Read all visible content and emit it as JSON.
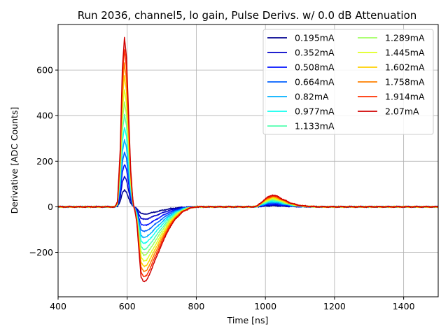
{
  "chart_data": {
    "type": "line",
    "title": "Run 2036, channel5, lo gain, Pulse Derivs. w/ 0.0 dB Attenuation",
    "xlabel": "Time [ns]",
    "ylabel": "Derivative [ADC Counts]",
    "xlim": [
      400,
      1500
    ],
    "ylim": [
      -395,
      800
    ],
    "xticks": [
      400,
      600,
      800,
      1000,
      1200,
      1400
    ],
    "xtick_labels": [
      "400",
      "600",
      "800",
      "1000",
      "1200",
      "1400"
    ],
    "yticks": [
      -200,
      0,
      200,
      400,
      600
    ],
    "ytick_labels": [
      "−200",
      "0",
      "200",
      "400",
      "600"
    ],
    "grid": true,
    "legend_placement": "top-right",
    "legend_columns": 2,
    "pulse_shape": {
      "x": [
        400,
        565,
        572,
        580,
        586,
        592,
        598,
        604,
        610,
        616,
        622,
        628,
        634,
        640,
        648,
        656,
        666,
        680,
        700,
        720,
        740,
        760,
        780,
        800,
        960,
        975,
        990,
        1005,
        1020,
        1035,
        1050,
        1070,
        1090,
        1110,
        1130,
        1160,
        1200,
        1500
      ],
      "shape": [
        0,
        0,
        0.03,
        0.35,
        0.82,
        1.0,
        0.88,
        0.55,
        0.22,
        0.05,
        -0.05,
        -0.22,
        -0.58,
        -0.93,
        -1.0,
        -0.98,
        -0.88,
        -0.72,
        -0.5,
        -0.3,
        -0.16,
        -0.07,
        -0.02,
        0,
        0,
        0.003,
        0.03,
        0.055,
        0.07,
        0.062,
        0.045,
        0.025,
        0.012,
        0.005,
        0.002,
        0,
        0,
        0
      ]
    },
    "series": [
      {
        "name": "0.195mA",
        "color": "#00008f",
        "peak": 73,
        "trough": -32,
        "bump": 5
      },
      {
        "name": "0.352mA",
        "color": "#0000c8",
        "peak": 132,
        "trough": -55,
        "bump": 8
      },
      {
        "name": "0.508mA",
        "color": "#0010ff",
        "peak": 186,
        "trough": -82,
        "bump": 12
      },
      {
        "name": "0.664mA",
        "color": "#0060ff",
        "peak": 240,
        "trough": -108,
        "bump": 17
      },
      {
        "name": "0.82mA",
        "color": "#00b0ff",
        "peak": 295,
        "trough": -135,
        "bump": 21
      },
      {
        "name": "0.977mA",
        "color": "#10ffef",
        "peak": 350,
        "trough": -160,
        "bump": 25
      },
      {
        "name": "1.133mA",
        "color": "#50ffaf",
        "peak": 405,
        "trough": -187,
        "bump": 29
      },
      {
        "name": "1.289mA",
        "color": "#a0ff60",
        "peak": 460,
        "trough": -212,
        "bump": 33
      },
      {
        "name": "1.445mA",
        "color": "#e0ff20",
        "peak": 515,
        "trough": -238,
        "bump": 37
      },
      {
        "name": "1.602mA",
        "color": "#ffd000",
        "peak": 575,
        "trough": -262,
        "bump": 41
      },
      {
        "name": "1.758mA",
        "color": "#ff8000",
        "peak": 630,
        "trough": -285,
        "bump": 45
      },
      {
        "name": "1.914mA",
        "color": "#ff3000",
        "peak": 690,
        "trough": -308,
        "bump": 48
      },
      {
        "name": "2.07mA",
        "color": "#d00000",
        "peak": 742,
        "trough": -330,
        "bump": 52
      }
    ]
  }
}
